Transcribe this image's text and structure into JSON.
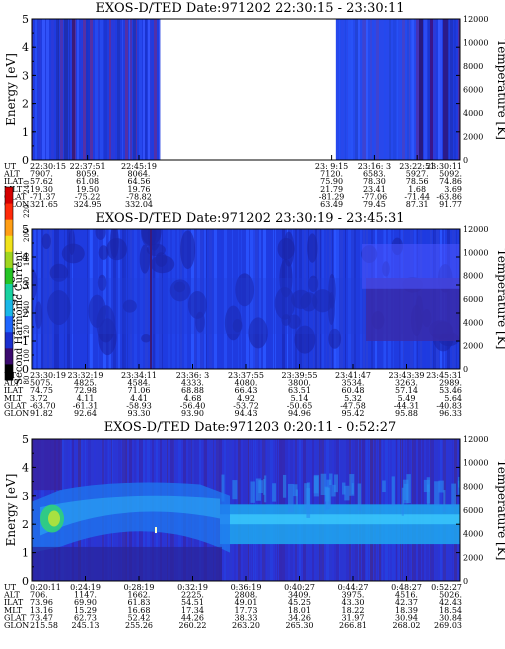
{
  "colorbar": {
    "label": "Second Harmonic Current",
    "ticks": [
      "80",
      "100",
      "120",
      "140",
      "160",
      "180",
      "200",
      "220",
      "240"
    ],
    "colors": [
      "#000000",
      "#3b0a6e",
      "#1a2fcf",
      "#1f66ff",
      "#19b7e8",
      "#18d2a0",
      "#25c525",
      "#a0d61e",
      "#f0e21a",
      "#ff9e14",
      "#ff2a0a",
      "#d40000"
    ]
  },
  "row_labels": [
    "UT",
    "ALT",
    "ILAT",
    "MLT",
    "GLAT",
    "GLON"
  ],
  "chart_data": [
    {
      "type": "heatmap",
      "title": "EXOS-D/TED   Date:971202  22:30:15 - 23:30:11",
      "ylabel": "Energy [eV]",
      "y2label": "Temperature [K]",
      "ylim": [
        0,
        5
      ],
      "y2lim": [
        0,
        12000
      ],
      "yticks": [
        "0",
        "1",
        "2",
        "3",
        "4",
        "5"
      ],
      "y2ticks": [
        "0",
        "2000",
        "4000",
        "6000",
        "8000",
        "10000",
        "12000"
      ],
      "data_gap": [
        0.3,
        0.71
      ],
      "columns": [
        {
          "pos": 0.0,
          "UT": "22:30:15",
          "ALT": "7907.",
          "ILAT": "57.62",
          "MLT": "19.30",
          "GLAT": "-71.37",
          "GLON": "321.65"
        },
        {
          "pos": 0.13,
          "UT": "22:37:51",
          "ALT": "8059.",
          "ILAT": "61.08",
          "MLT": "19.50",
          "GLAT": "-75.22",
          "GLON": "324.95"
        },
        {
          "pos": 0.25,
          "UT": "22:45:19",
          "ALT": "8064.",
          "ILAT": "64.56",
          "MLT": "19.76",
          "GLAT": "-78.82",
          "GLON": "332.04"
        },
        {
          "pos": 0.7,
          "UT": "23: 9:15",
          "ALT": "7120.",
          "ILAT": "75.90",
          "MLT": "21.79",
          "GLAT": "-81.29",
          "GLON": "63.49"
        },
        {
          "pos": 0.8,
          "UT": "23:16: 3",
          "ALT": "6583.",
          "ILAT": "78.30",
          "MLT": "23.41",
          "GLAT": "-77.06",
          "GLON": "79.45"
        },
        {
          "pos": 0.9,
          "UT": "23:22:51",
          "ALT": "5927.",
          "ILAT": "78.56",
          "MLT": "1.68",
          "GLAT": "-71.44",
          "GLON": "87.31"
        },
        {
          "pos": 1.0,
          "UT": "23:30:11",
          "ALT": "5092.",
          "ILAT": "74.86",
          "MLT": "3.69",
          "GLAT": "-63.86",
          "GLON": "91.77"
        }
      ]
    },
    {
      "type": "heatmap",
      "title": "EXOS-D/TED   Date:971202  23:30:19 - 23:45:31",
      "ylabel": "Energy [eV]",
      "y2label": "Temperature [K]",
      "ylim": [
        0,
        5
      ],
      "y2lim": [
        0,
        12000
      ],
      "yticks": [
        "0",
        "1",
        "2",
        "3",
        "4",
        "5"
      ],
      "y2ticks": [
        "0",
        "2000",
        "4000",
        "6000",
        "8000",
        "10000",
        "12000"
      ],
      "columns": [
        {
          "pos": 0.0,
          "UT": "23:30:19",
          "ALT": "5075.",
          "ILAT": "74.75",
          "MLT": "3.72",
          "GLAT": "-63.70",
          "GLON": "91.82"
        },
        {
          "pos": 0.125,
          "UT": "23:32:19",
          "ALT": "4825.",
          "ILAT": "72.98",
          "MLT": "4.11",
          "GLAT": "-61.31",
          "GLON": "92.64"
        },
        {
          "pos": 0.25,
          "UT": "23:34:11",
          "ALT": "4584.",
          "ILAT": "71.06",
          "MLT": "4.41",
          "GLAT": "-58.93",
          "GLON": "93.30"
        },
        {
          "pos": 0.375,
          "UT": "23:36: 3",
          "ALT": "4333.",
          "ILAT": "68.88",
          "MLT": "4.68",
          "GLAT": "-56.40",
          "GLON": "93.90"
        },
        {
          "pos": 0.5,
          "UT": "23:37:55",
          "ALT": "4080.",
          "ILAT": "66.43",
          "MLT": "4.92",
          "GLAT": "-53.72",
          "GLON": "94.43"
        },
        {
          "pos": 0.625,
          "UT": "23:39:55",
          "ALT": "3800.",
          "ILAT": "63.51",
          "MLT": "5.14",
          "GLAT": "-50.65",
          "GLON": "94.96"
        },
        {
          "pos": 0.75,
          "UT": "23:41:47",
          "ALT": "3534.",
          "ILAT": "60.48",
          "MLT": "5.32",
          "GLAT": "-47.58",
          "GLON": "95.42"
        },
        {
          "pos": 0.875,
          "UT": "23:43:39",
          "ALT": "3263.",
          "ILAT": "57.14",
          "MLT": "5.49",
          "GLAT": "-44.31",
          "GLON": "95.88"
        },
        {
          "pos": 1.0,
          "UT": "23:45:31",
          "ALT": "2989.",
          "ILAT": "53.46",
          "MLT": "5.64",
          "GLAT": "-40.83",
          "GLON": "96.33"
        }
      ]
    },
    {
      "type": "heatmap",
      "title": "EXOS-D/TED   Date:971203   0:20:11 - 0:52:27",
      "ylabel": "Energy [eV]",
      "y2label": "Temperature [K]",
      "ylim": [
        0,
        5
      ],
      "y2lim": [
        0,
        12000
      ],
      "yticks": [
        "0",
        "1",
        "2",
        "3",
        "4",
        "5"
      ],
      "y2ticks": [
        "0",
        "2000",
        "4000",
        "6000",
        "8000",
        "10000",
        "12000"
      ],
      "columns": [
        {
          "pos": 0.0,
          "UT": "0:20:11",
          "ALT": "706.",
          "ILAT": "73.96",
          "MLT": "13.16",
          "GLAT": "73.47",
          "GLON": "215.58"
        },
        {
          "pos": 0.125,
          "UT": "0:24:19",
          "ALT": "1147.",
          "ILAT": "69.90",
          "MLT": "15.29",
          "GLAT": "62.73",
          "GLON": "245.13"
        },
        {
          "pos": 0.25,
          "UT": "0:28:19",
          "ALT": "1662.",
          "ILAT": "61.83",
          "MLT": "16.68",
          "GLAT": "52.42",
          "GLON": "255.26"
        },
        {
          "pos": 0.375,
          "UT": "0:32:19",
          "ALT": "2225.",
          "ILAT": "54.51",
          "MLT": "17.34",
          "GLAT": "44.26",
          "GLON": "260.22"
        },
        {
          "pos": 0.5,
          "UT": "0:36:19",
          "ALT": "2808.",
          "ILAT": "49.01",
          "MLT": "17.73",
          "GLAT": "38.33",
          "GLON": "263.20"
        },
        {
          "pos": 0.625,
          "UT": "0:40:27",
          "ALT": "3409.",
          "ILAT": "45.25",
          "MLT": "18.01",
          "GLAT": "34.26",
          "GLON": "265.30"
        },
        {
          "pos": 0.75,
          "UT": "0:44:27",
          "ALT": "3975.",
          "ILAT": "43.30",
          "MLT": "18.22",
          "GLAT": "31.97",
          "GLON": "266.81"
        },
        {
          "pos": 0.875,
          "UT": "0:48:27",
          "ALT": "4516.",
          "ILAT": "42.37",
          "MLT": "18.39",
          "GLAT": "30.94",
          "GLON": "268.02"
        },
        {
          "pos": 1.0,
          "UT": "0:52:27",
          "ALT": "5026.",
          "ILAT": "42.43",
          "MLT": "18.54",
          "GLAT": "30.84",
          "GLON": "269.03"
        }
      ]
    }
  ]
}
